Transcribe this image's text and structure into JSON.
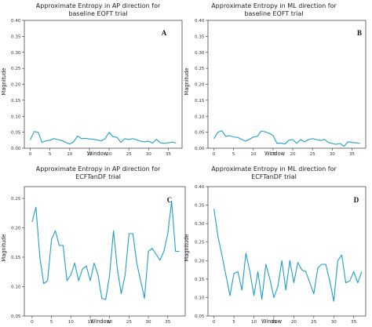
{
  "chart_data": [
    {
      "type": "line",
      "panel": "A",
      "title_lines": [
        "Approximate Entropy in AP direction for",
        "baseline EOFT trial"
      ],
      "xlabel": "Window",
      "ylabel": "Magnitude",
      "xlim": [
        -1.5,
        38.5
      ],
      "ylim": [
        0,
        0.4
      ],
      "xticks": [
        0,
        5,
        10,
        15,
        20,
        25,
        30,
        35
      ],
      "yticks": [
        0.0,
        0.05,
        0.1,
        0.15,
        0.2,
        0.25,
        0.3,
        0.35,
        0.4
      ],
      "x": [
        0,
        1,
        2,
        3,
        4,
        5,
        6,
        7,
        8,
        9,
        10,
        11,
        12,
        13,
        14,
        15,
        16,
        17,
        18,
        19,
        20,
        21,
        22,
        23,
        24,
        25,
        26,
        27,
        28,
        29,
        30,
        31,
        32,
        33,
        34,
        35,
        36,
        37
      ],
      "values": [
        0.026,
        0.052,
        0.05,
        0.018,
        0.023,
        0.025,
        0.03,
        0.027,
        0.024,
        0.018,
        0.013,
        0.02,
        0.038,
        0.03,
        0.031,
        0.029,
        0.028,
        0.026,
        0.023,
        0.03,
        0.05,
        0.036,
        0.034,
        0.018,
        0.03,
        0.027,
        0.03,
        0.026,
        0.022,
        0.02,
        0.022,
        0.016,
        0.028,
        0.017,
        0.015,
        0.017,
        0.019,
        0.016
      ]
    },
    {
      "type": "line",
      "panel": "B",
      "title_lines": [
        "Approximate Entropy in ML direction for",
        "baseline EOFT trial"
      ],
      "xlabel": "Window",
      "ylabel": "Magnitude",
      "xlim": [
        -1.5,
        38.5
      ],
      "ylim": [
        0,
        0.4
      ],
      "xticks": [
        0,
        5,
        10,
        15,
        20,
        25,
        30,
        35
      ],
      "yticks": [
        0.0,
        0.05,
        0.1,
        0.15,
        0.2,
        0.25,
        0.3,
        0.35,
        0.4
      ],
      "x": [
        0,
        1,
        2,
        3,
        4,
        5,
        6,
        7,
        8,
        9,
        10,
        11,
        12,
        13,
        14,
        15,
        16,
        17,
        18,
        19,
        20,
        21,
        22,
        23,
        24,
        25,
        26,
        27,
        28,
        29,
        30,
        31,
        32,
        33,
        34,
        35,
        36,
        37
      ],
      "values": [
        0.03,
        0.05,
        0.055,
        0.037,
        0.039,
        0.035,
        0.034,
        0.028,
        0.022,
        0.028,
        0.035,
        0.037,
        0.054,
        0.051,
        0.047,
        0.04,
        0.015,
        0.016,
        0.013,
        0.025,
        0.027,
        0.015,
        0.027,
        0.02,
        0.027,
        0.03,
        0.027,
        0.024,
        0.028,
        0.018,
        0.015,
        0.012,
        0.015,
        0.006,
        0.02,
        0.018,
        0.017,
        0.015
      ]
    },
    {
      "type": "line",
      "panel": "C",
      "title_lines": [
        "Approximate Entropy in AP direction for",
        "ECFTanDF trial"
      ],
      "xlabel": "Window",
      "ylabel": "Magnitude",
      "xlim": [
        -2,
        39.5
      ],
      "ylim": [
        0.05,
        0.27
      ],
      "xticks": [
        0,
        5,
        10,
        15,
        20,
        25,
        30,
        35
      ],
      "yticks": [
        0.05,
        0.1,
        0.15,
        0.2,
        0.25
      ],
      "x": [
        0,
        1,
        2,
        3,
        4,
        5,
        6,
        7,
        8,
        9,
        10,
        11,
        12,
        13,
        14,
        15,
        16,
        17,
        18,
        19,
        20,
        21,
        22,
        23,
        24,
        25,
        26,
        27,
        28,
        29,
        30,
        31,
        32,
        33,
        34,
        35,
        36,
        37,
        38
      ],
      "values": [
        0.21,
        0.235,
        0.15,
        0.105,
        0.11,
        0.18,
        0.195,
        0.17,
        0.17,
        0.11,
        0.12,
        0.14,
        0.11,
        0.13,
        0.135,
        0.11,
        0.14,
        0.12,
        0.08,
        0.078,
        0.12,
        0.195,
        0.13,
        0.088,
        0.12,
        0.19,
        0.19,
        0.14,
        0.11,
        0.08,
        0.16,
        0.165,
        0.155,
        0.145,
        0.16,
        0.19,
        0.245,
        0.16,
        0.16
      ]
    },
    {
      "type": "line",
      "panel": "D",
      "title_lines": [
        "Approximate Entropy in ML direction for",
        "ECFTanDF trial"
      ],
      "xlabel": "Window",
      "ylabel": "Magnitude",
      "xlim": [
        -1.5,
        38
      ],
      "ylim": [
        0.05,
        0.4
      ],
      "xticks": [
        0,
        5,
        10,
        15,
        20,
        25,
        30,
        35
      ],
      "yticks": [
        0.05,
        0.1,
        0.15,
        0.2,
        0.25,
        0.3,
        0.35,
        0.4
      ],
      "x": [
        0,
        1,
        2,
        3,
        4,
        5,
        6,
        7,
        8,
        9,
        10,
        11,
        12,
        13,
        14,
        15,
        16,
        17,
        18,
        19,
        20,
        21,
        22,
        23,
        24,
        25,
        26,
        27,
        28,
        29,
        30,
        31,
        32,
        33,
        34,
        35,
        36,
        37
      ],
      "values": [
        0.34,
        0.265,
        0.215,
        0.16,
        0.105,
        0.165,
        0.17,
        0.12,
        0.22,
        0.17,
        0.105,
        0.17,
        0.095,
        0.19,
        0.15,
        0.1,
        0.13,
        0.2,
        0.12,
        0.2,
        0.14,
        0.195,
        0.175,
        0.17,
        0.14,
        0.11,
        0.18,
        0.19,
        0.19,
        0.145,
        0.09,
        0.2,
        0.215,
        0.14,
        0.145,
        0.17,
        0.14,
        0.17
      ]
    }
  ]
}
